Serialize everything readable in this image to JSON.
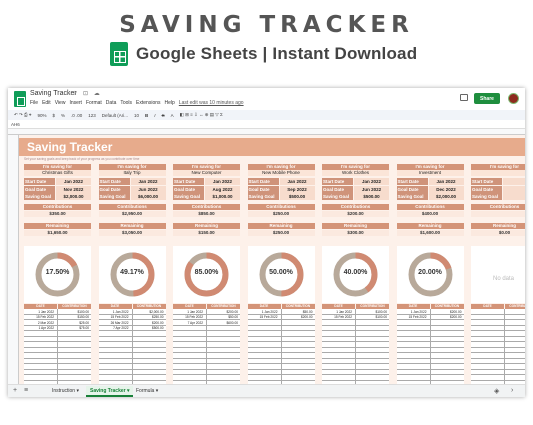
{
  "promo": {
    "title": "SAVING TRACKER",
    "subtitle": "Google Sheets | Instant Download"
  },
  "app": {
    "doc_title": "Saving Tracker",
    "menu": [
      "File",
      "Edit",
      "View",
      "Insert",
      "Format",
      "Data",
      "Tools",
      "Extensions",
      "Help"
    ],
    "last_edit": "Last edit was 10 minutes ago",
    "share_label": "Share",
    "cell_ref": "AH6",
    "toolbar": {
      "zoom": "90%",
      "currency": "$",
      "percent": "%",
      "decimals": ".0  .00",
      "format": "123",
      "font": "Default (Ari...",
      "size": "10",
      "bold": "B",
      "italic": "I",
      "strike": "S",
      "text": "A"
    }
  },
  "sheet": {
    "title": "Saving Tracker",
    "subtitle": "Set your saving goals and keep track of your progress as you contribute over time",
    "labels": {
      "saving_for": "I'm saving for",
      "start": "Start Date",
      "goal": "Goal Date",
      "saving_goal": "Saving Goal",
      "contributions": "Contributions",
      "remaining": "Remaining",
      "date": "DATE",
      "contribution": "CONTRIBUTION",
      "no_data": "No data"
    },
    "cards": [
      {
        "name": "Christmas Gifts",
        "start": "Jan 2022",
        "goal_date": "Nov 2022",
        "goal": "$2,000.00",
        "contributions": "$350.00",
        "remaining": "$1,650.00",
        "percent": "17.50%",
        "pct_value": 0.175,
        "rows": [
          {
            "date": "1 Jan 2022",
            "amount": "$100.00"
          },
          {
            "date": "15 Feb 2022",
            "amount": "$150.00"
          },
          {
            "date": "2 Mar 2022",
            "amount": "$25.00"
          },
          {
            "date": "1 Apr 2022",
            "amount": "$75.00"
          }
        ]
      },
      {
        "name": "Italy Trip",
        "start": "Jan 2022",
        "goal_date": "Jun 2022",
        "goal": "$6,000.00",
        "contributions": "$2,950.00",
        "remaining": "$3,050.00",
        "percent": "49.17%",
        "pct_value": 0.4917,
        "rows": [
          {
            "date": "1 Jan 2022",
            "amount": "$2,000.00"
          },
          {
            "date": "15 Feb 2022",
            "amount": "$250.00"
          },
          {
            "date": "26 Mar 2022",
            "amount": "$200.00"
          },
          {
            "date": "7 Apr 2022",
            "amount": "$500.00"
          }
        ]
      },
      {
        "name": "New Computer",
        "start": "Jan 2022",
        "goal_date": "Aug 2022",
        "goal": "$1,000.00",
        "contributions": "$850.00",
        "remaining": "$150.00",
        "percent": "85.00%",
        "pct_value": 0.85,
        "rows": [
          {
            "date": "1 Jan 2022",
            "amount": "$200.00"
          },
          {
            "date": "15 Feb 2022",
            "amount": "$50.00"
          },
          {
            "date": "7 Apr 2022",
            "amount": "$600.00"
          }
        ]
      },
      {
        "name": "New Mobile Phone",
        "start": "Jan 2022",
        "goal_date": "Sep 2022",
        "goal": "$500.00",
        "contributions": "$250.00",
        "remaining": "$250.00",
        "percent": "50.00%",
        "pct_value": 0.5,
        "rows": [
          {
            "date": "1 Jan 2022",
            "amount": "$50.00"
          },
          {
            "date": "15 Feb 2022",
            "amount": "$200.00"
          }
        ]
      },
      {
        "name": "Work Clothes",
        "start": "Jan 2022",
        "goal_date": "Jun 2022",
        "goal": "$500.00",
        "contributions": "$200.00",
        "remaining": "$300.00",
        "percent": "40.00%",
        "pct_value": 0.4,
        "rows": [
          {
            "date": "1 Jan 2022",
            "amount": "$100.00"
          },
          {
            "date": "15 Feb 2022",
            "amount": "$100.00"
          }
        ]
      },
      {
        "name": "Investment",
        "start": "Jan 2022",
        "goal_date": "Dec 2022",
        "goal": "$2,000.00",
        "contributions": "$400.00",
        "remaining": "$1,600.00",
        "percent": "20.00%",
        "pct_value": 0.2,
        "rows": [
          {
            "date": "1 Jan 2022",
            "amount": "$200.00"
          },
          {
            "date": "15 Feb 2022",
            "amount": "$200.00"
          }
        ]
      },
      {
        "name": "",
        "start": "",
        "goal_date": "",
        "goal": "",
        "contributions": "",
        "remaining": "$0.00",
        "percent": "",
        "pct_value": 0,
        "rows": []
      }
    ]
  },
  "tabs": [
    "Instruction",
    "Saving Tracker",
    "Formula"
  ],
  "colors": {
    "accent": "#d49478",
    "ring_done": "#d08a72",
    "ring_rest": "#b8a99a",
    "sheet_bg": "#fdf1ea"
  }
}
